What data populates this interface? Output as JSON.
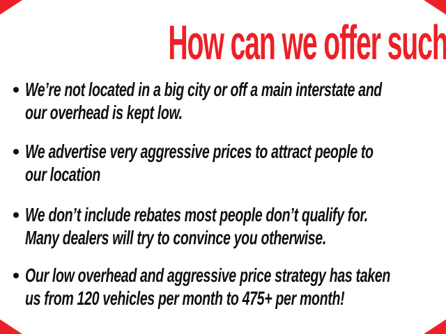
{
  "page": {
    "background_color": "#ffffff",
    "accent_red": "#ec2127",
    "text_black": "#101010",
    "bullet_glyph": "round-dot"
  },
  "headline": {
    "text": "How can we offer such low prices?",
    "color": "#ec2127"
  },
  "bullets": [
    {
      "lines": [
        "We’re not located in a big city or off a main interstate and",
        "our overhead is kept low."
      ]
    },
    {
      "lines": [
        "We advertise very aggressive prices to attract people to",
        "our location"
      ]
    },
    {
      "lines": [
        "We don’t include rebates most people don’t qualify for.",
        "Many dealers will try to convince you otherwise."
      ]
    },
    {
      "lines": [
        "Our low overhead and aggressive price strategy has taken",
        "us from 120 vehicles per month to 475+ per month!"
      ]
    }
  ],
  "decorations": {
    "corner_triangle_color": "#ec2127",
    "corners": [
      "top-left",
      "top-right",
      "bottom-left",
      "bottom-right"
    ]
  }
}
